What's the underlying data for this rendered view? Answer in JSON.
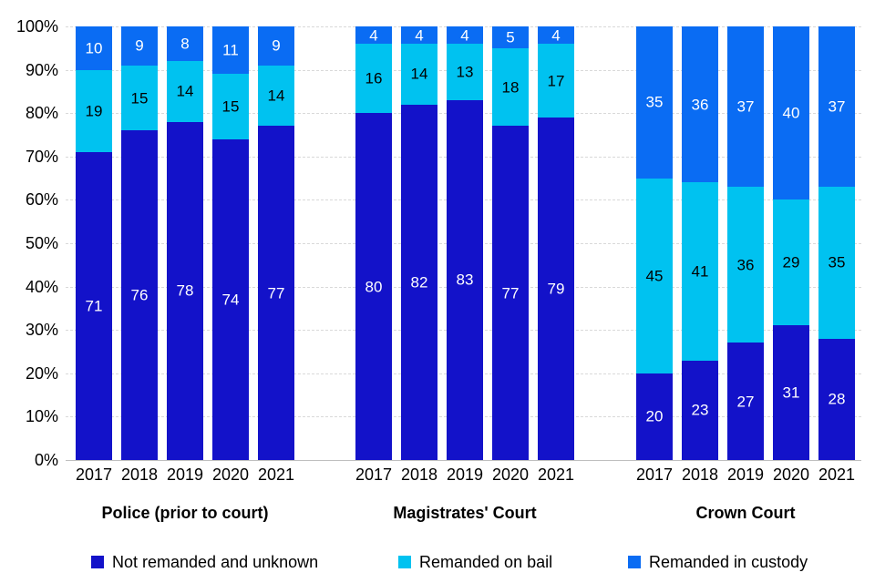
{
  "chart_data": {
    "type": "bar",
    "stacked": true,
    "unit": "percent",
    "categories": [
      "2017",
      "2018",
      "2019",
      "2020",
      "2021"
    ],
    "groups": [
      {
        "label": "Police (prior to court)",
        "series": [
          {
            "name": "Not remanded and unknown",
            "values": [
              71,
              76,
              78,
              74,
              77
            ]
          },
          {
            "name": "Remanded on bail",
            "values": [
              19,
              15,
              14,
              15,
              14
            ]
          },
          {
            "name": "Remanded in custody",
            "values": [
              10,
              9,
              8,
              11,
              9
            ]
          }
        ]
      },
      {
        "label": "Magistrates' Court",
        "series": [
          {
            "name": "Not remanded and unknown",
            "values": [
              80,
              82,
              83,
              77,
              79
            ]
          },
          {
            "name": "Remanded on bail",
            "values": [
              16,
              14,
              13,
              18,
              17
            ]
          },
          {
            "name": "Remanded in custody",
            "values": [
              4,
              4,
              4,
              5,
              4
            ]
          }
        ]
      },
      {
        "label": "Crown Court",
        "series": [
          {
            "name": "Not remanded and unknown",
            "values": [
              20,
              23,
              27,
              31,
              28
            ]
          },
          {
            "name": "Remanded on bail",
            "values": [
              45,
              41,
              36,
              29,
              35
            ]
          },
          {
            "name": "Remanded in custody",
            "values": [
              35,
              36,
              37,
              40,
              37
            ]
          }
        ]
      }
    ],
    "legend": [
      {
        "name": "Not remanded and unknown",
        "color": "#1312c9",
        "text_color": "#ffffff"
      },
      {
        "name": "Remanded on bail",
        "color": "#00c2f0",
        "text_color": "#000000"
      },
      {
        "name": "Remanded in custody",
        "color": "#0a6cf3",
        "text_color": "#ffffff"
      }
    ],
    "y_axis": {
      "ticks": [
        "0%",
        "10%",
        "20%",
        "30%",
        "40%",
        "50%",
        "60%",
        "70%",
        "80%",
        "90%",
        "100%"
      ],
      "min": 0,
      "max": 100,
      "grid": "dashed"
    },
    "legend_position": "bottom",
    "colors": {
      "gridline": "#d9d9d9",
      "axis_line": "#bfbfbf",
      "background": "#ffffff"
    }
  }
}
